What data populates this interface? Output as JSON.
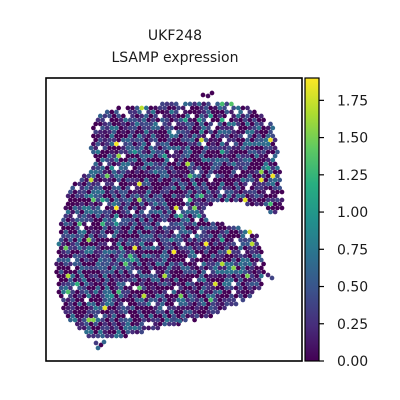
{
  "chart_data": {
    "type": "scatter",
    "subtype": "spatial-transcriptomics-hex-spots",
    "title_lines": [
      "UKF248",
      "LSAMP expression"
    ],
    "xlabel": "",
    "ylabel": "",
    "colorbar": {
      "colormap": "viridis",
      "range": [
        0,
        1.9
      ],
      "ticks": [
        0.0,
        0.25,
        0.5,
        0.75,
        1.0,
        1.25,
        1.5,
        1.75
      ],
      "tick_labels": [
        "0.00",
        "0.25",
        "0.50",
        "0.75",
        "1.00",
        "1.25",
        "1.50",
        "1.75"
      ],
      "placement": "right"
    },
    "expression_distribution": {
      "min": 0.0,
      "max": 1.9,
      "typical_range": [
        0.0,
        0.75
      ],
      "dominant_value": 0.0
    },
    "axes_ticks_visible": false,
    "grid": false,
    "colors": {
      "viridis_low": "#440154",
      "viridis_mid": "#21918c",
      "viridis_high": "#fde725",
      "frame": "#000000"
    }
  }
}
